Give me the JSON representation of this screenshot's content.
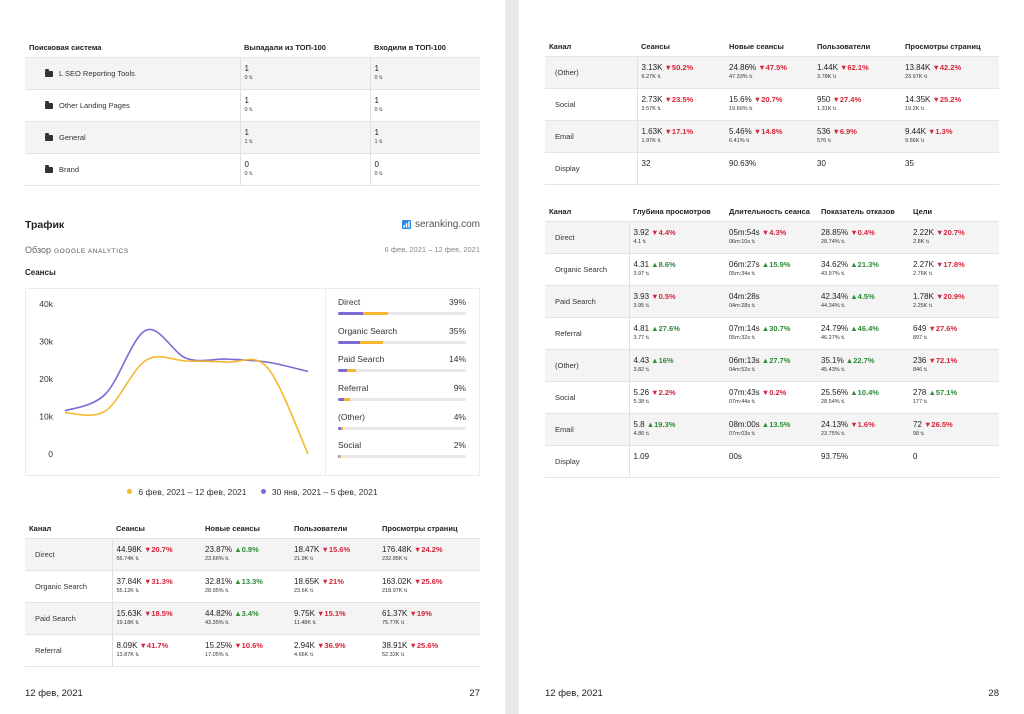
{
  "colors": {
    "yellow": "#f5b82e",
    "purple": "#7d6ad3",
    "up": "#2e8b3a",
    "down": "#d6243a"
  },
  "page1": {
    "top100": {
      "headers": [
        "Поисковая система",
        "Выпадали из ТОП-100",
        "Входили в ТОП-100"
      ],
      "rows": [
        {
          "name": "L SEO Reporting Tools",
          "out": "1",
          "out_sub": "0",
          "in": "1",
          "in_sub": "0"
        },
        {
          "name": "Other Landing Pages",
          "out": "1",
          "out_sub": "0",
          "in": "1",
          "in_sub": "0"
        },
        {
          "name": "General",
          "out": "1",
          "out_sub": "1",
          "in": "1",
          "in_sub": "1"
        },
        {
          "name": "Brand",
          "out": "0",
          "out_sub": "0",
          "in": "0",
          "in_sub": "0"
        }
      ]
    },
    "section_title": "Трафик",
    "brand": "seranking.com",
    "overview": "Обзор",
    "overview_sub": "GOOGLE ANALYTICS",
    "date_range": "6 фев, 2021 – 12 фев, 2021",
    "chart_title": "Сеансы",
    "legend": [
      "6 фев, 2021 – 12 фев, 2021",
      "30 янв, 2021 – 5 фев, 2021"
    ],
    "shares": [
      {
        "name": "Direct",
        "pct": "39%",
        "value": 39,
        "prev": 39
      },
      {
        "name": "Organic Search",
        "pct": "35%",
        "value": 35,
        "prev": 35
      },
      {
        "name": "Paid Search",
        "pct": "14%",
        "value": 14,
        "prev": 12
      },
      {
        "name": "Referral",
        "pct": "9%",
        "value": 9,
        "prev": 8
      },
      {
        "name": "(Other)",
        "pct": "4%",
        "value": 4,
        "prev": 4
      },
      {
        "name": "Social",
        "pct": "2%",
        "value": 2,
        "prev": 2
      }
    ],
    "channels": {
      "headers": [
        "Канал",
        "Сеансы",
        "Новые сеансы",
        "Пользователи",
        "Просмотры страниц"
      ],
      "rows": [
        {
          "name": "Direct",
          "cells": [
            {
              "v": "44.98K",
              "d": "20.7%",
              "dir": "down",
              "s": "56.74K"
            },
            {
              "v": "23.87%",
              "d": "0.9%",
              "dir": "up",
              "s": "23.66%"
            },
            {
              "v": "18.47K",
              "d": "15.6%",
              "dir": "down",
              "s": "21.9K"
            },
            {
              "v": "176.48K",
              "d": "24.2%",
              "dir": "down",
              "s": "232.85K"
            }
          ]
        },
        {
          "name": "Organic Search",
          "cells": [
            {
              "v": "37.84K",
              "d": "31.3%",
              "dir": "down",
              "s": "55.12K"
            },
            {
              "v": "32.81%",
              "d": "13.3%",
              "dir": "up",
              "s": "28.95%"
            },
            {
              "v": "18.65K",
              "d": "21%",
              "dir": "down",
              "s": "23.6K"
            },
            {
              "v": "163.02K",
              "d": "25.6%",
              "dir": "down",
              "s": "218.97K"
            }
          ]
        },
        {
          "name": "Paid Search",
          "cells": [
            {
              "v": "15.63K",
              "d": "18.5%",
              "dir": "down",
              "s": "19.18K"
            },
            {
              "v": "44.82%",
              "d": "3.4%",
              "dir": "up",
              "s": "43.35%"
            },
            {
              "v": "9.75K",
              "d": "15.1%",
              "dir": "down",
              "s": "11.48K"
            },
            {
              "v": "61.37K",
              "d": "19%",
              "dir": "down",
              "s": "75.77K"
            }
          ]
        },
        {
          "name": "Referral",
          "cells": [
            {
              "v": "8.09K",
              "d": "41.7%",
              "dir": "down",
              "s": "13.87K"
            },
            {
              "v": "15.25%",
              "d": "10.6%",
              "dir": "down",
              "s": "17.05%"
            },
            {
              "v": "2.94K",
              "d": "36.9%",
              "dir": "down",
              "s": "4.66K"
            },
            {
              "v": "38.91K",
              "d": "25.6%",
              "dir": "down",
              "s": "52.32K"
            }
          ]
        }
      ]
    },
    "footer_date": "12 фев, 2021",
    "page_num": "27"
  },
  "page2": {
    "channels": {
      "headers": [
        "Канал",
        "Сеансы",
        "Новые сеансы",
        "Пользователи",
        "Просмотры страниц"
      ],
      "rows": [
        {
          "name": "(Other)",
          "cells": [
            {
              "v": "3.13K",
              "d": "50.2%",
              "dir": "down",
              "s": "6.27K"
            },
            {
              "v": "24.86%",
              "d": "47.5%",
              "dir": "down",
              "s": "47.33%"
            },
            {
              "v": "1.44K",
              "d": "62.1%",
              "dir": "down",
              "s": "3.78K"
            },
            {
              "v": "13.84K",
              "d": "42.2%",
              "dir": "down",
              "s": "23.97K"
            }
          ]
        },
        {
          "name": "Social",
          "cells": [
            {
              "v": "2.73K",
              "d": "23.5%",
              "dir": "down",
              "s": "3.57K"
            },
            {
              "v": "15.6%",
              "d": "20.7%",
              "dir": "down",
              "s": "19.66%"
            },
            {
              "v": "950",
              "d": "27.4%",
              "dir": "down",
              "s": "1.31K"
            },
            {
              "v": "14.35K",
              "d": "25.2%",
              "dir": "down",
              "s": "19.2K"
            }
          ]
        },
        {
          "name": "Email",
          "cells": [
            {
              "v": "1.63K",
              "d": "17.1%",
              "dir": "down",
              "s": "1.97K"
            },
            {
              "v": "5.46%",
              "d": "14.8%",
              "dir": "down",
              "s": "6.41%"
            },
            {
              "v": "536",
              "d": "6.9%",
              "dir": "down",
              "s": "576"
            },
            {
              "v": "9.44K",
              "d": "1.3%",
              "dir": "down",
              "s": "9.56K"
            }
          ]
        },
        {
          "name": "Display",
          "cells": [
            {
              "v": "32",
              "d": "",
              "dir": "",
              "s": ""
            },
            {
              "v": "90.63%",
              "d": "",
              "dir": "",
              "s": ""
            },
            {
              "v": "30",
              "d": "",
              "dir": "",
              "s": ""
            },
            {
              "v": "35",
              "d": "",
              "dir": "",
              "s": ""
            }
          ]
        }
      ]
    },
    "metrics": {
      "headers": [
        "Канал",
        "Глубина просмотров",
        "Длительность сеанса",
        "Показатель отказов",
        "Цели"
      ],
      "rows": [
        {
          "name": "Direct",
          "cells": [
            {
              "v": "3.92",
              "d": "4.4%",
              "dir": "down",
              "s": "4.1"
            },
            {
              "v": "05m:54s",
              "d": "4.3%",
              "dir": "down",
              "s": "06m:10s"
            },
            {
              "v": "28.85%",
              "d": "0.4%",
              "dir": "down",
              "s": "28.74%"
            },
            {
              "v": "2.22K",
              "d": "20.7%",
              "dir": "down",
              "s": "2.8K"
            }
          ]
        },
        {
          "name": "Organic Search",
          "cells": [
            {
              "v": "4.31",
              "d": "8.6%",
              "dir": "up",
              "s": "3.97"
            },
            {
              "v": "06m:27s",
              "d": "15.9%",
              "dir": "up",
              "s": "05m:34s"
            },
            {
              "v": "34.62%",
              "d": "21.3%",
              "dir": "up",
              "s": "43.97%"
            },
            {
              "v": "2.27K",
              "d": "17.8%",
              "dir": "down",
              "s": "2.76K"
            }
          ]
        },
        {
          "name": "Paid Search",
          "cells": [
            {
              "v": "3.93",
              "d": "0.5%",
              "dir": "down",
              "s": "3.95"
            },
            {
              "v": "04m:28s",
              "d": "",
              "dir": "",
              "s": "04m:28s"
            },
            {
              "v": "42.34%",
              "d": "4.5%",
              "dir": "up",
              "s": "44.34%"
            },
            {
              "v": "1.78K",
              "d": "20.9%",
              "dir": "down",
              "s": "2.25K"
            }
          ]
        },
        {
          "name": "Referral",
          "cells": [
            {
              "v": "4.81",
              "d": "27.6%",
              "dir": "up",
              "s": "3.77"
            },
            {
              "v": "07m:14s",
              "d": "30.7%",
              "dir": "up",
              "s": "05m:32s"
            },
            {
              "v": "24.79%",
              "d": "46.4%",
              "dir": "up",
              "s": "46.27%"
            },
            {
              "v": "649",
              "d": "27.6%",
              "dir": "down",
              "s": "897"
            }
          ]
        },
        {
          "name": "(Other)",
          "cells": [
            {
              "v": "4.43",
              "d": "16%",
              "dir": "up",
              "s": "3.82"
            },
            {
              "v": "06m:13s",
              "d": "27.7%",
              "dir": "up",
              "s": "04m:52s"
            },
            {
              "v": "35.1%",
              "d": "22.7%",
              "dir": "up",
              "s": "45.43%"
            },
            {
              "v": "236",
              "d": "72.1%",
              "dir": "down",
              "s": "846"
            }
          ]
        },
        {
          "name": "Social",
          "cells": [
            {
              "v": "5.26",
              "d": "2.2%",
              "dir": "down",
              "s": "5.38"
            },
            {
              "v": "07m:43s",
              "d": "0.2%",
              "dir": "down",
              "s": "07m:44s"
            },
            {
              "v": "25.56%",
              "d": "10.4%",
              "dir": "up",
              "s": "28.54%"
            },
            {
              "v": "278",
              "d": "57.1%",
              "dir": "up",
              "s": "177"
            }
          ]
        },
        {
          "name": "Email",
          "cells": [
            {
              "v": "5.8",
              "d": "19.3%",
              "dir": "up",
              "s": "4.86"
            },
            {
              "v": "08m:00s",
              "d": "13.5%",
              "dir": "up",
              "s": "07m:03s"
            },
            {
              "v": "24.13%",
              "d": "1.6%",
              "dir": "down",
              "s": "23.75%"
            },
            {
              "v": "72",
              "d": "26.5%",
              "dir": "down",
              "s": "98"
            }
          ]
        },
        {
          "name": "Display",
          "cells": [
            {
              "v": "1.09",
              "d": "",
              "dir": "",
              "s": ""
            },
            {
              "v": "00s",
              "d": "",
              "dir": "",
              "s": ""
            },
            {
              "v": "93.75%",
              "d": "",
              "dir": "",
              "s": ""
            },
            {
              "v": "0",
              "d": "",
              "dir": "",
              "s": ""
            }
          ]
        }
      ]
    },
    "footer_date": "12 фев, 2021",
    "page_num": "28"
  },
  "chart_data": {
    "type": "line",
    "title": "Сеансы",
    "ylim": [
      0,
      40000
    ],
    "yticks": [
      "0",
      "10k",
      "20k",
      "30k",
      "40k"
    ],
    "series": [
      {
        "name": "6 фев, 2021 – 12 фев, 2021",
        "color": "#f5b82e",
        "values": [
          11000,
          11500,
          25000,
          24800,
          24500,
          23000,
          0
        ]
      },
      {
        "name": "30 янв, 2021 – 5 фев, 2021",
        "color": "#7d6ad3",
        "values": [
          11500,
          16000,
          33000,
          25500,
          25300,
          24500,
          22000
        ]
      }
    ]
  }
}
